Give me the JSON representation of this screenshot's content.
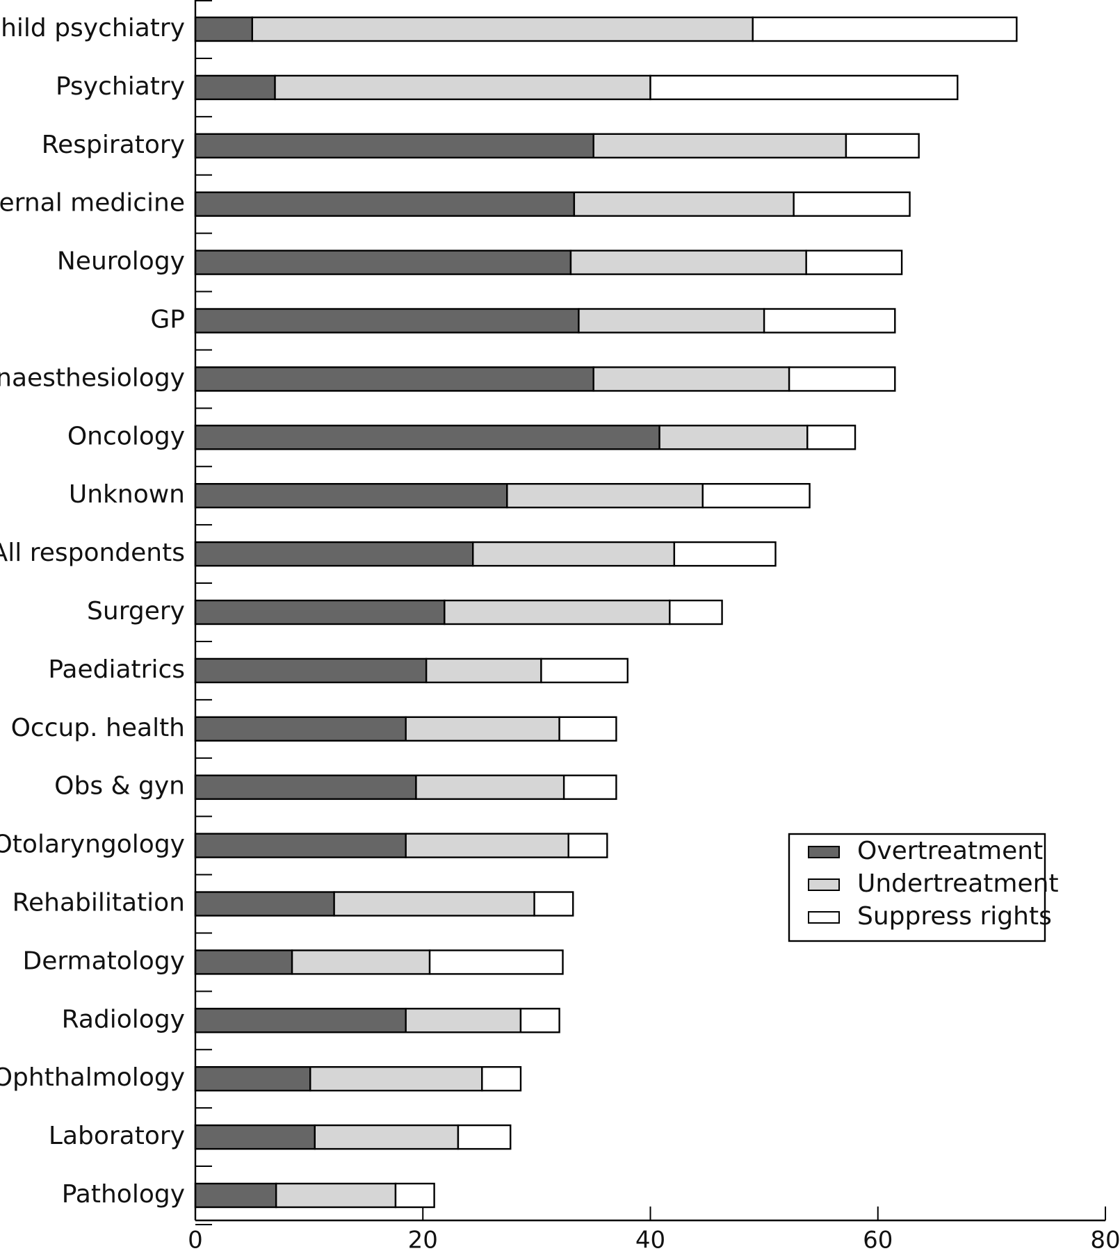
{
  "chart_data": {
    "type": "bar",
    "orientation": "horizontal",
    "stacked": true,
    "categories": [
      "Child psychiatry",
      "Psychiatry",
      "Respiratory",
      "Internal medicine",
      "Neurology",
      "GP",
      "Anaesthesiology",
      "Oncology",
      "Unknown",
      "All respondents",
      "Surgery",
      "Paediatrics",
      "Occup. health",
      "Obs & gyn",
      "Otolaryngology",
      "Rehabilitation",
      "Dermatology",
      "Radiology",
      "Ophthalmology",
      "Laboratory",
      "Pathology"
    ],
    "series": [
      {
        "name": "Overtreatment",
        "color": "#666666",
        "values": [
          5,
          7,
          35,
          33.3,
          33,
          33.7,
          35,
          40.8,
          27.4,
          24.4,
          21.9,
          20.3,
          18.5,
          19.4,
          18.5,
          12.2,
          8.5,
          18.5,
          10.1,
          10.5,
          7.1
        ]
      },
      {
        "name": "Undertreatment",
        "color": "#d6d6d6",
        "values": [
          44,
          33,
          22.2,
          19.3,
          20.7,
          16.3,
          17.2,
          13,
          17.2,
          17.7,
          19.8,
          10.1,
          13.5,
          13,
          14.3,
          17.6,
          12.1,
          10.1,
          15.1,
          12.6,
          10.5
        ]
      },
      {
        "name": "Suppress rights",
        "color": "#ffffff",
        "values": [
          23.2,
          27,
          6.4,
          10.2,
          8.4,
          11.5,
          9.3,
          4.2,
          9.4,
          8.9,
          4.6,
          7.6,
          5,
          4.6,
          3.4,
          3.4,
          11.7,
          3.4,
          3.4,
          4.6,
          3.4
        ]
      }
    ],
    "x_ticks": [
      "0",
      "20",
      "40",
      "60",
      "80"
    ],
    "xlim": [
      0,
      80
    ],
    "legend_position": "lower-right",
    "grid": false,
    "title": "",
    "xlabel": "",
    "ylabel": ""
  }
}
